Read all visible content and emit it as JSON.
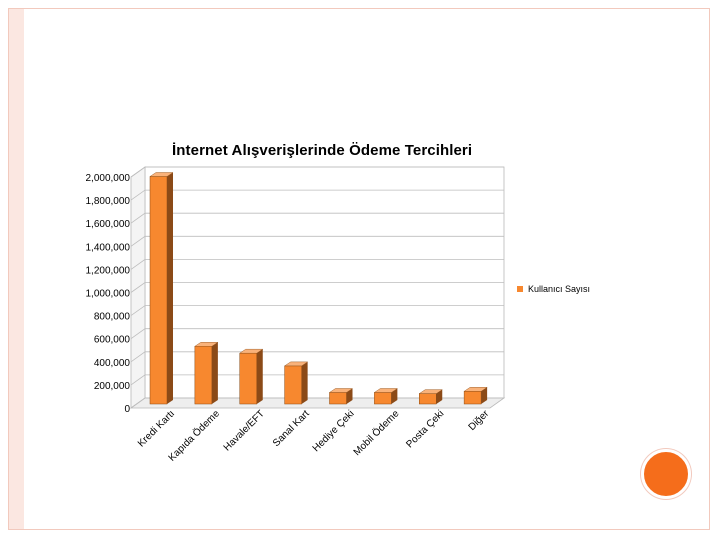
{
  "slide": {
    "accent_color": "#f56d1b",
    "frame_color": "#f2c9bd"
  },
  "chart_data": {
    "type": "bar",
    "style": "3d-column",
    "title": "İnternet Alışverişlerinde Ödeme Tercihleri",
    "categories": [
      "Kredi Kartı",
      "Kapıda Ödeme",
      "Havale/EFT",
      "Sanal Kart",
      "Hediye Çeki",
      "Mobil Ödeme",
      "Posta Çeki",
      "Diğer"
    ],
    "series": [
      {
        "name": "Kullanıcı Sayısı",
        "values": [
          1970000,
          500000,
          440000,
          330000,
          100000,
          100000,
          90000,
          110000
        ],
        "color": "#f7882f"
      }
    ],
    "y_ticks": [
      "2,000,000",
      "1,800,000",
      "1,600,000",
      "1,400,000",
      "1,200,000",
      "1,000,000",
      "800,000",
      "600,000",
      "400,000",
      "200,000",
      "0"
    ],
    "ylim": [
      0,
      2000000
    ],
    "grid": true,
    "legend_position": "right"
  }
}
